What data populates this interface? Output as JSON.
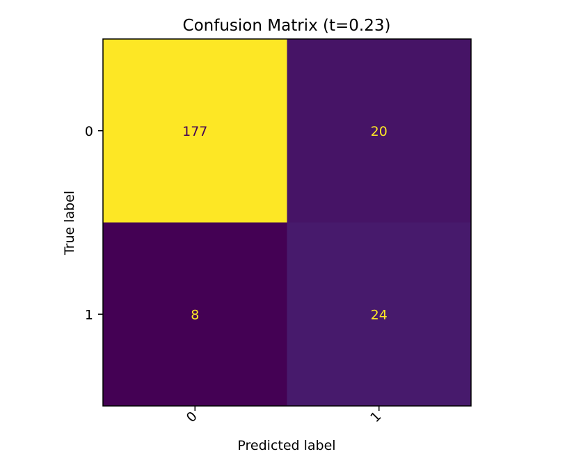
{
  "chart_data": {
    "type": "heatmap",
    "title": "Confusion Matrix (t=0.23)",
    "xlabel": "Predicted label",
    "ylabel": "True label",
    "x_categories": [
      "0",
      "1"
    ],
    "y_categories": [
      "0",
      "1"
    ],
    "matrix": [
      [
        177,
        20
      ],
      [
        8,
        24
      ]
    ],
    "colormap": "viridis",
    "x_tick_rotation_deg": 45,
    "colorbar": false,
    "grid": false,
    "colors": {
      "low": "#440154",
      "high": "#fde725",
      "text_on_dark": "#fde725",
      "text_on_light": "#440154"
    }
  }
}
